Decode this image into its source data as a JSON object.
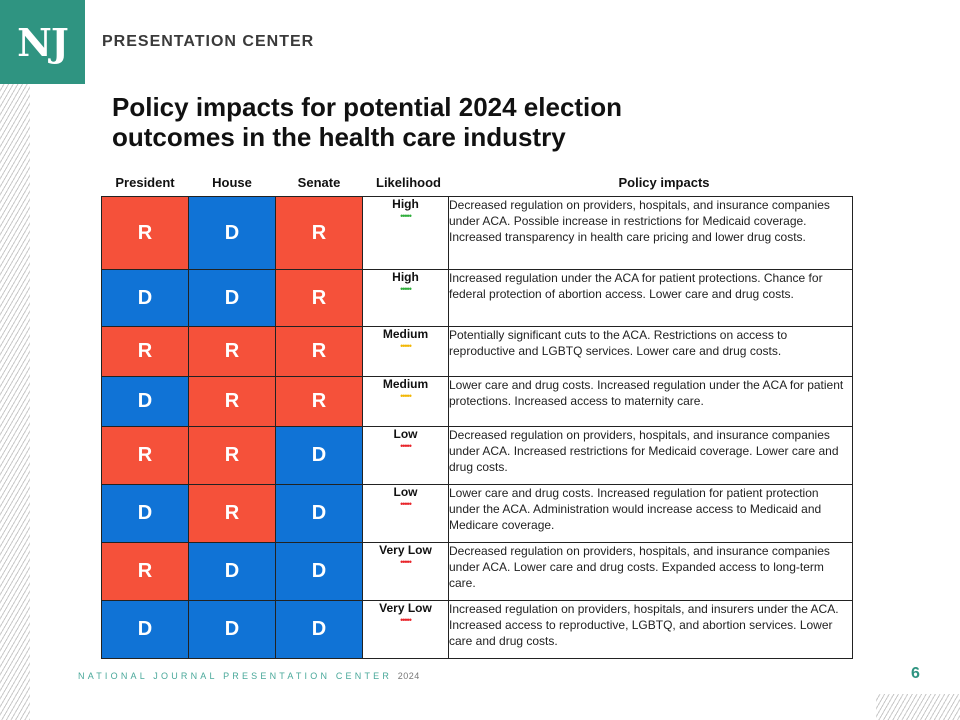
{
  "brand": {
    "logo_text": "NJ",
    "name": "PRESENTATION CENTER"
  },
  "title_line1": "Policy impacts for potential 2024 election",
  "title_line2": "outcomes in the health care industry",
  "headers": {
    "president": "President",
    "house": "House",
    "senate": "Senate",
    "likelihood": "Likelihood",
    "impacts": "Policy impacts"
  },
  "colors": {
    "R": "#f5513a",
    "D": "#1073d6",
    "high": "#2fae3b",
    "medium": "#f2b705",
    "low": "#e8242a",
    "brand": "#2f9481"
  },
  "rows": [
    {
      "president": "R",
      "house": "D",
      "senate": "R",
      "likelihood": "High",
      "dots": "•••••",
      "level": "high",
      "impact": "Decreased regulation on providers, hospitals, and insurance companies under ACA. Possible increase in restrictions for Medicaid coverage. Increased transparency in health care pricing and lower drug costs."
    },
    {
      "president": "D",
      "house": "D",
      "senate": "R",
      "likelihood": "High",
      "dots": "•••••",
      "level": "high",
      "impact": "Increased regulation under the ACA for patient protections. Chance for federal protection of abortion access. Lower care and drug costs."
    },
    {
      "president": "R",
      "house": "R",
      "senate": "R",
      "likelihood": "Medium",
      "dots": "•••••",
      "level": "medium",
      "impact": "Potentially significant cuts to the ACA. Restrictions on access to reproductive and LGBTQ services. Lower care and drug costs."
    },
    {
      "president": "D",
      "house": "R",
      "senate": "R",
      "likelihood": "Medium",
      "dots": "•••••",
      "level": "medium",
      "impact": "Lower care and drug costs. Increased regulation under the ACA for patient protections. Increased access to maternity care."
    },
    {
      "president": "R",
      "house": "R",
      "senate": "D",
      "likelihood": "Low",
      "dots": "•••••",
      "level": "low",
      "impact": "Decreased regulation on providers, hospitals, and insurance companies under ACA. Increased restrictions for Medicaid coverage. Lower care and drug costs."
    },
    {
      "president": "D",
      "house": "R",
      "senate": "D",
      "likelihood": "Low",
      "dots": "•••••",
      "level": "low",
      "impact": "Lower care and drug costs. Increased regulation for patient protection under the ACA. Administration would increase access to Medicaid and Medicare coverage."
    },
    {
      "president": "R",
      "house": "D",
      "senate": "D",
      "likelihood": "Very Low",
      "dots": "•••••",
      "level": "low",
      "impact": "Decreased regulation on providers, hospitals, and insurance companies under ACA. Lower care and drug costs. Expanded access to long-term care."
    },
    {
      "president": "D",
      "house": "D",
      "senate": "D",
      "likelihood": "Very Low",
      "dots": "•••••",
      "level": "low",
      "impact": "Increased regulation on providers, hospitals, and insurers under the ACA. Increased access to reproductive, LGBTQ, and abortion services. Lower care and drug costs."
    }
  ],
  "footer": {
    "text": "NATIONAL JOURNAL PRESENTATION CENTER",
    "year": "2024"
  },
  "page_number": "6"
}
